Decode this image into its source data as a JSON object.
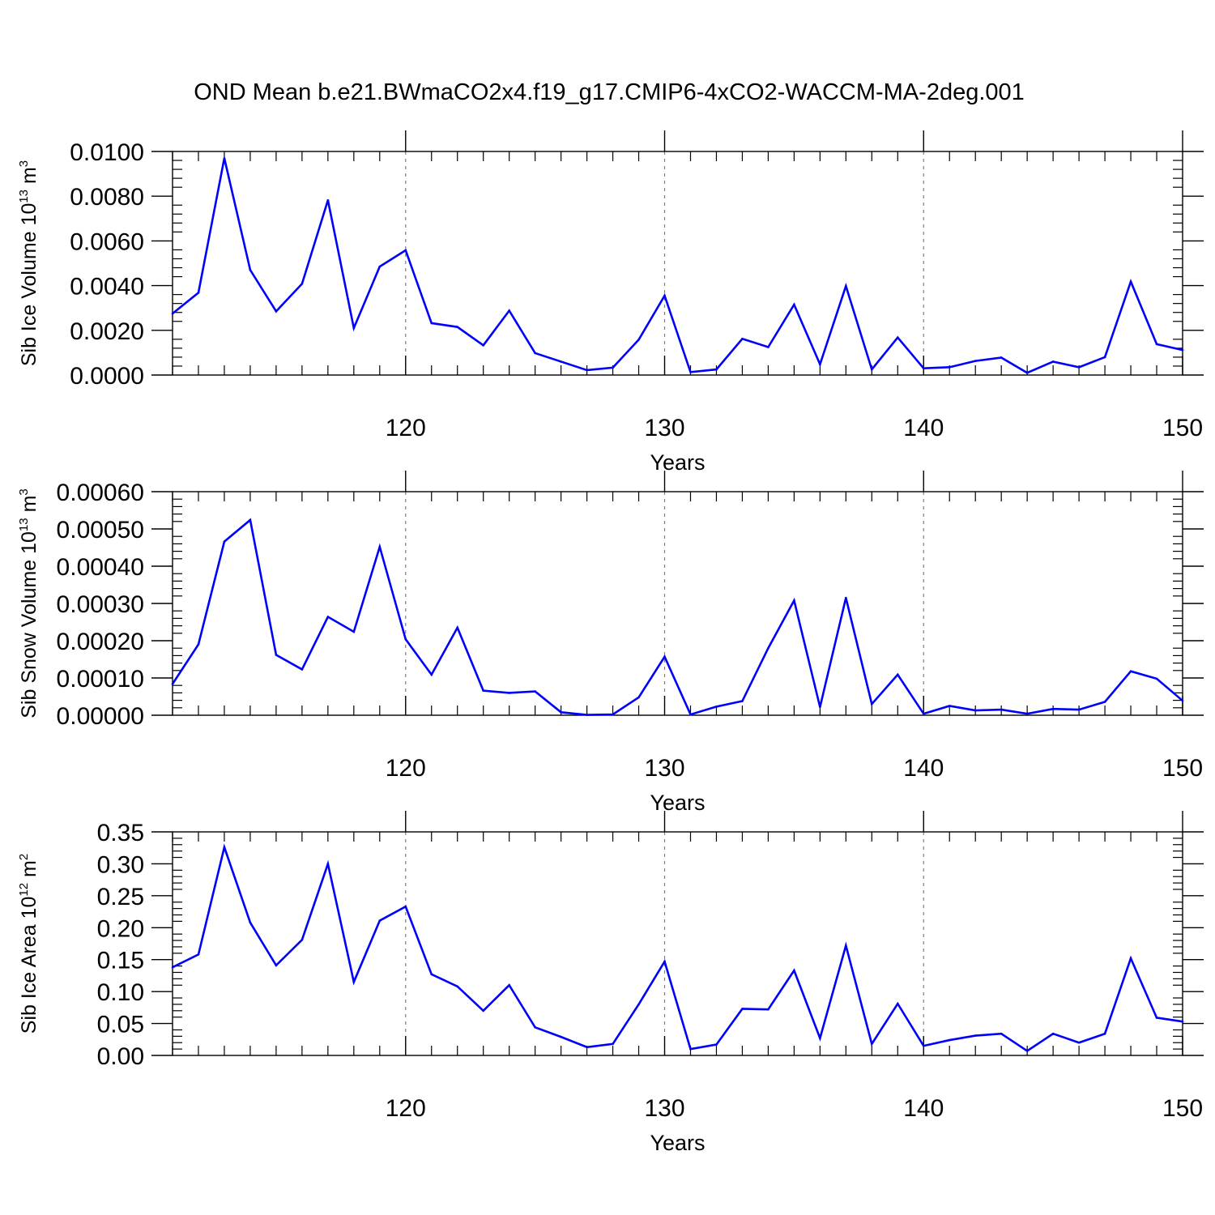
{
  "figure_title": "OND Mean b.e21.BWmaCO2x4.f19_g17.CMIP6-4xCO2-WACCM-MA-2deg.001",
  "colors": {
    "line": "#0000ff",
    "axes": "#000000",
    "grid": "#808080"
  },
  "chart_data": [
    {
      "type": "line",
      "title": "",
      "xlabel": "Years",
      "ylabel": {
        "prefix": "Sib Ice Volume 10",
        "exp1": "13",
        "mid": " m",
        "exp2": "3"
      },
      "xlim": [
        111,
        150
      ],
      "ylim": [
        0,
        0.01
      ],
      "x_ticks": [
        120,
        130,
        140,
        150
      ],
      "x_tick_labels": [
        "120",
        "130",
        "140",
        "150"
      ],
      "y_ticks": [
        0,
        0.002,
        0.004,
        0.006,
        0.008,
        0.01
      ],
      "y_tick_labels": [
        "0.0000",
        "0.0020",
        "0.0040",
        "0.0060",
        "0.0080",
        "0.0100"
      ],
      "grid": "vertical dashed at x ticks",
      "x": [
        111,
        112,
        113,
        114,
        115,
        116,
        117,
        118,
        119,
        120,
        121,
        122,
        123,
        124,
        125,
        126,
        127,
        128,
        129,
        130,
        131,
        132,
        133,
        134,
        135,
        136,
        137,
        138,
        139,
        140,
        141,
        142,
        143,
        144,
        145,
        146,
        147,
        148,
        149,
        150
      ],
      "series": [
        {
          "values": [
            0.00275,
            0.00368,
            0.0097,
            0.0047,
            0.00285,
            0.00408,
            0.00782,
            0.0021,
            0.00485,
            0.00558,
            0.00232,
            0.00215,
            0.00133,
            0.00288,
            0.00098,
            0.0006,
            0.00022,
            0.00033,
            0.00158,
            0.00355,
            0.00013,
            0.00025,
            0.00162,
            0.00125,
            0.00315,
            0.00048,
            0.00398,
            0.00025,
            0.00168,
            0.0003,
            0.00035,
            0.00063,
            0.00078,
            0.0001,
            0.0006,
            0.00035,
            0.0008,
            0.00418,
            0.00138,
            0.00112
          ]
        }
      ]
    },
    {
      "type": "line",
      "title": "",
      "xlabel": "Years",
      "ylabel": {
        "prefix": "Sib Snow Volume 10",
        "exp1": "13",
        "mid": " m",
        "exp2": "3"
      },
      "xlim": [
        111,
        150
      ],
      "ylim": [
        0,
        0.0006
      ],
      "x_ticks": [
        120,
        130,
        140,
        150
      ],
      "x_tick_labels": [
        "120",
        "130",
        "140",
        "150"
      ],
      "y_ticks": [
        0,
        0.0001,
        0.0002,
        0.0003,
        0.0004,
        0.0005,
        0.0006
      ],
      "y_tick_labels": [
        "0.00000",
        "0.00010",
        "0.00020",
        "0.00030",
        "0.00040",
        "0.00050",
        "0.00060"
      ],
      "grid": "vertical dashed at x ticks",
      "x": [
        111,
        112,
        113,
        114,
        115,
        116,
        117,
        118,
        119,
        120,
        121,
        122,
        123,
        124,
        125,
        126,
        127,
        128,
        129,
        130,
        131,
        132,
        133,
        134,
        135,
        136,
        137,
        138,
        139,
        140,
        141,
        142,
        143,
        144,
        145,
        146,
        147,
        148,
        149,
        150
      ],
      "series": [
        {
          "values": [
            8.4e-05,
            0.00019,
            0.000466,
            0.000524,
            0.000162,
            0.000123,
            0.000264,
            0.000224,
            0.000452,
            0.000204,
            0.000109,
            0.000235,
            6.6e-05,
            6e-05,
            6.4e-05,
            8e-06,
            1e-06,
            2e-06,
            4.8e-05,
            0.000157,
            2e-06,
            2.3e-05,
            3.8e-05,
            0.00018,
            0.000308,
            2.2e-05,
            0.000315,
            3e-05,
            0.000109,
            4e-06,
            2.5e-05,
            1.3e-05,
            1.5e-05,
            4e-06,
            1.7e-05,
            1.5e-05,
            3.6e-05,
            0.000118,
            9.8e-05,
            3.9e-05
          ]
        }
      ]
    },
    {
      "type": "line",
      "title": "",
      "xlabel": "Years",
      "ylabel": {
        "prefix": "Sib Ice Area 10",
        "exp1": "12",
        "mid": " m",
        "exp2": "2"
      },
      "xlim": [
        111,
        150
      ],
      "ylim": [
        0,
        0.35
      ],
      "x_ticks": [
        120,
        130,
        140,
        150
      ],
      "x_tick_labels": [
        "120",
        "130",
        "140",
        "150"
      ],
      "y_ticks": [
        0,
        0.05,
        0.1,
        0.15,
        0.2,
        0.25,
        0.3,
        0.35
      ],
      "y_tick_labels": [
        "0.00",
        "0.05",
        "0.10",
        "0.15",
        "0.20",
        "0.25",
        "0.30",
        "0.35"
      ],
      "grid": "vertical dashed at x ticks",
      "x": [
        111,
        112,
        113,
        114,
        115,
        116,
        117,
        118,
        119,
        120,
        121,
        122,
        123,
        124,
        125,
        126,
        127,
        128,
        129,
        130,
        131,
        132,
        133,
        134,
        135,
        136,
        137,
        138,
        139,
        140,
        141,
        142,
        143,
        144,
        145,
        146,
        147,
        148,
        149,
        150
      ],
      "series": [
        {
          "values": [
            0.138,
            0.158,
            0.326,
            0.208,
            0.141,
            0.181,
            0.3,
            0.115,
            0.211,
            0.233,
            0.127,
            0.108,
            0.07,
            0.11,
            0.044,
            0.029,
            0.013,
            0.018,
            0.08,
            0.147,
            0.01,
            0.017,
            0.073,
            0.072,
            0.133,
            0.027,
            0.172,
            0.018,
            0.081,
            0.015,
            0.024,
            0.031,
            0.034,
            0.007,
            0.034,
            0.02,
            0.034,
            0.152,
            0.059,
            0.053
          ]
        }
      ]
    }
  ]
}
